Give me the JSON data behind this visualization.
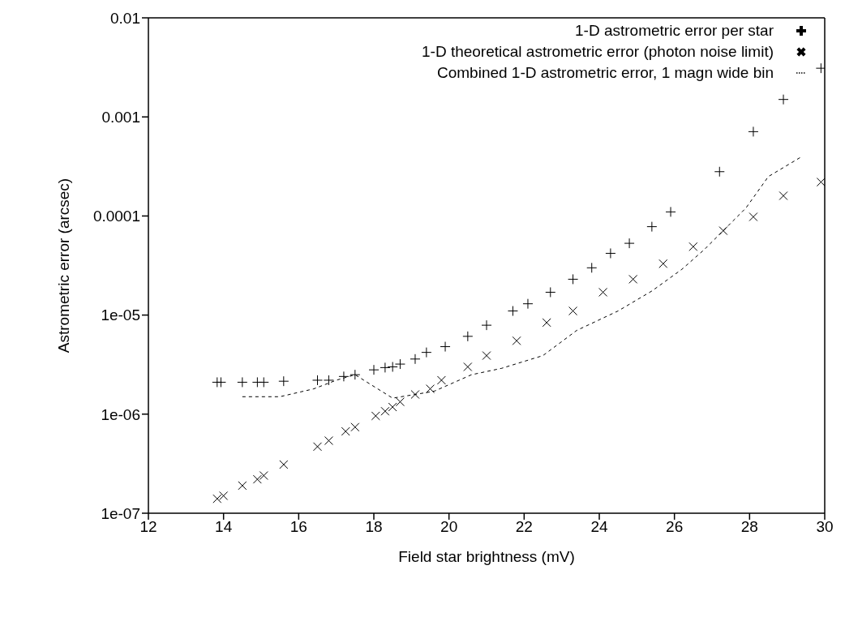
{
  "chart_data": {
    "type": "scatter",
    "xlabel": "Field star brightness (mV)",
    "ylabel": "Astrometric error (arcsec)",
    "xlim": [
      12,
      30
    ],
    "xticks": [
      12,
      14,
      16,
      18,
      20,
      22,
      24,
      26,
      28,
      30
    ],
    "ylim": [
      1e-07,
      0.01
    ],
    "yticks": [
      {
        "value": 1e-07,
        "label": "1e-07"
      },
      {
        "value": 1e-06,
        "label": "1e-06"
      },
      {
        "value": 1e-05,
        "label": "1e-05"
      },
      0.0001,
      0.001,
      0.01
    ],
    "log": "y",
    "grid": false,
    "legend": "top right",
    "series": [
      {
        "name": "1-D astrometric error per star",
        "type": "scatter",
        "marker": "plus",
        "color": "#000000",
        "x": [
          13.83,
          13.93,
          14.5,
          14.9,
          15.07,
          15.6,
          16.5,
          16.8,
          17.2,
          17.5,
          18.0,
          18.3,
          18.5,
          18.7,
          19.1,
          19.4,
          19.9,
          20.5,
          21.0,
          21.7,
          22.1,
          22.7,
          23.3,
          23.8,
          24.3,
          24.8,
          25.4,
          25.9,
          27.2,
          28.1,
          28.9,
          29.9
        ],
        "values": [
          2.1e-06,
          2.1e-06,
          2.1e-06,
          2.1e-06,
          2.1e-06,
          2.15e-06,
          2.2e-06,
          2.2e-06,
          2.4e-06,
          2.5e-06,
          2.8e-06,
          2.95e-06,
          3e-06,
          3.2e-06,
          3.6e-06,
          4.2e-06,
          4.8e-06,
          6.1e-06,
          7.9e-06,
          1.1e-05,
          1.3e-05,
          1.7e-05,
          2.3e-05,
          3e-05,
          4.2e-05,
          5.3e-05,
          7.8e-05,
          0.00011,
          0.00028,
          0.00071,
          0.0015,
          0.0031
        ]
      },
      {
        "name": "1-D theoretical astrometric error (photon noise limit)",
        "type": "scatter",
        "marker": "cross",
        "color": "#000000",
        "x": [
          13.83,
          14.0,
          14.5,
          14.9,
          15.07,
          15.6,
          16.5,
          16.8,
          17.25,
          17.5,
          18.05,
          18.3,
          18.5,
          18.7,
          19.1,
          19.5,
          19.8,
          20.5,
          21.0,
          21.8,
          22.6,
          23.3,
          24.1,
          24.9,
          25.7,
          26.5,
          27.3,
          28.1,
          28.9,
          29.9
        ],
        "values": [
          1.4e-07,
          1.5e-07,
          1.9e-07,
          2.2e-07,
          2.4e-07,
          3.1e-07,
          4.7e-07,
          5.4e-07,
          6.7e-07,
          7.4e-07,
          9.6e-07,
          1.07e-06,
          1.18e-06,
          1.33e-06,
          1.58e-06,
          1.8e-06,
          2.2e-06,
          3e-06,
          3.9e-06,
          5.5e-06,
          8.4e-06,
          1.1e-05,
          1.7e-05,
          2.3e-05,
          3.3e-05,
          4.9e-05,
          7.1e-05,
          9.8e-05,
          0.00016,
          0.00022
        ]
      },
      {
        "name": "Combined 1-D astrometric error, 1 magn wide bin",
        "type": "line",
        "marker": "none",
        "line_style": "dashed",
        "color": "#000000",
        "x": [
          14.5,
          15.5,
          16.4,
          17.0,
          17.5,
          18.5,
          19.6,
          20.6,
          21.4,
          22.5,
          23.4,
          24.5,
          25.4,
          26.2,
          26.8,
          27.9,
          28.5,
          29.4
        ],
        "values": [
          1.5e-06,
          1.5e-06,
          1.8e-06,
          2.2e-06,
          2.5e-06,
          1.45e-06,
          1.7e-06,
          2.5e-06,
          2.9e-06,
          3.9e-06,
          7e-06,
          1.1e-05,
          1.75e-05,
          2.9e-05,
          4.6e-05,
          0.00012,
          0.00025,
          0.0004
        ]
      }
    ]
  }
}
